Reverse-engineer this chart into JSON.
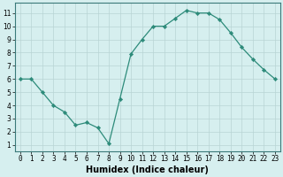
{
  "x": [
    0,
    1,
    2,
    3,
    4,
    5,
    6,
    7,
    8,
    9,
    10,
    11,
    12,
    13,
    14,
    15,
    16,
    17,
    18,
    19,
    20,
    21,
    22,
    23
  ],
  "y": [
    6,
    6,
    5,
    4,
    3.5,
    2.5,
    2.7,
    2.3,
    1.1,
    4.5,
    7.9,
    9,
    10,
    10,
    10.6,
    11.2,
    11,
    11,
    10.5,
    9.5,
    8.4,
    7.5,
    6.7,
    6
  ],
  "line_color": "#2d8b7a",
  "marker": "D",
  "marker_size": 2.2,
  "bg_color": "#d6efef",
  "grid_color": "#b8d4d4",
  "xlabel": "Humidex (Indice chaleur)",
  "xlabel_fontsize": 7,
  "xlim": [
    -0.5,
    23.5
  ],
  "ylim": [
    0.5,
    11.8
  ],
  "yticks": [
    1,
    2,
    3,
    4,
    5,
    6,
    7,
    8,
    9,
    10,
    11
  ],
  "xticks": [
    0,
    1,
    2,
    3,
    4,
    5,
    6,
    7,
    8,
    9,
    10,
    11,
    12,
    13,
    14,
    15,
    16,
    17,
    18,
    19,
    20,
    21,
    22,
    23
  ],
  "tick_fontsize": 5.5,
  "spine_color": "#3a7a7a"
}
